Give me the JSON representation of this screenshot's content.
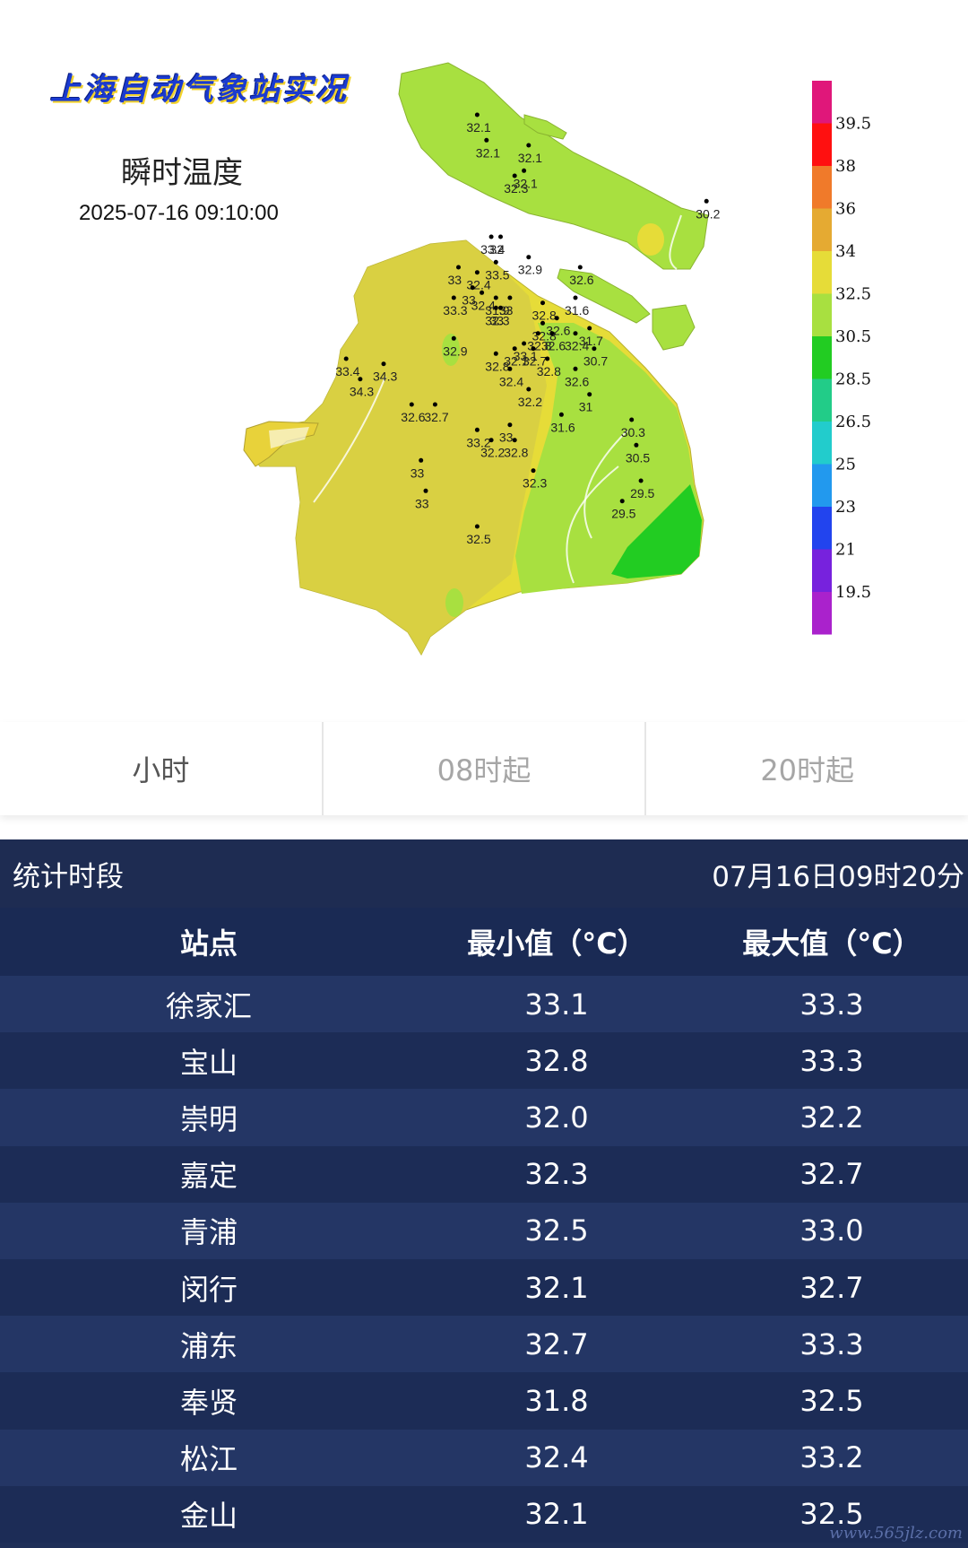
{
  "map": {
    "title": "上海自动气象站实况",
    "subtitle": "瞬时温度",
    "timestamp": "2025-07-16 09:10:00",
    "legend": [
      {
        "label": "39.5",
        "color": "#e0177a"
      },
      {
        "label": "38",
        "color": "#ff1010"
      },
      {
        "label": "36",
        "color": "#f07a2a"
      },
      {
        "label": "34",
        "color": "#e5aa32"
      },
      {
        "label": "32.5",
        "color": "#e6dc38"
      },
      {
        "label": "30.5",
        "color": "#a8e040"
      },
      {
        "label": "28.5",
        "color": "#22cc22"
      },
      {
        "label": "26.5",
        "color": "#22cc88"
      },
      {
        "label": "25",
        "color": "#22cccc"
      },
      {
        "label": "23",
        "color": "#2299ee"
      },
      {
        "label": "21",
        "color": "#2244ee"
      },
      {
        "label": "19.5",
        "color": "#7722dd"
      },
      {
        "label": "",
        "color": "#aa22cc"
      }
    ],
    "stations": [
      {
        "v": "32.1",
        "lon": 121.41,
        "lat": 31.76
      },
      {
        "v": "32.1",
        "lon": 121.43,
        "lat": 31.71
      },
      {
        "v": "32.1",
        "lon": 121.52,
        "lat": 31.7
      },
      {
        "v": "32.3",
        "lon": 121.49,
        "lat": 31.64
      },
      {
        "v": "32.1",
        "lon": 121.51,
        "lat": 31.65
      },
      {
        "v": "30.2",
        "lon": 121.9,
        "lat": 31.59
      },
      {
        "v": "33.4",
        "lon": 121.44,
        "lat": 31.52
      },
      {
        "v": "32",
        "lon": 121.46,
        "lat": 31.52
      },
      {
        "v": "33.5",
        "lon": 121.45,
        "lat": 31.47
      },
      {
        "v": "32.9",
        "lon": 121.52,
        "lat": 31.48
      },
      {
        "v": "33",
        "lon": 121.37,
        "lat": 31.46
      },
      {
        "v": "32.4",
        "lon": 121.41,
        "lat": 31.45
      },
      {
        "v": "32.6",
        "lon": 121.63,
        "lat": 31.46
      },
      {
        "v": "33",
        "lon": 121.4,
        "lat": 31.42
      },
      {
        "v": "33.3",
        "lon": 121.36,
        "lat": 31.4
      },
      {
        "v": "32.4",
        "lon": 121.42,
        "lat": 31.41
      },
      {
        "v": "31.9",
        "lon": 121.45,
        "lat": 31.4
      },
      {
        "v": "33",
        "lon": 121.48,
        "lat": 31.4
      },
      {
        "v": "32.8",
        "lon": 121.55,
        "lat": 31.39
      },
      {
        "v": "31.6",
        "lon": 121.62,
        "lat": 31.4
      },
      {
        "v": "32.3",
        "lon": 121.45,
        "lat": 31.38
      },
      {
        "v": "33",
        "lon": 121.46,
        "lat": 31.38
      },
      {
        "v": "32.6",
        "lon": 121.58,
        "lat": 31.36
      },
      {
        "v": "32.8",
        "lon": 121.55,
        "lat": 31.35
      },
      {
        "v": "32.6",
        "lon": 121.57,
        "lat": 31.33
      },
      {
        "v": "32.8",
        "lon": 121.54,
        "lat": 31.33
      },
      {
        "v": "32.4",
        "lon": 121.62,
        "lat": 31.33
      },
      {
        "v": "31.7",
        "lon": 121.65,
        "lat": 31.34
      },
      {
        "v": "32.9",
        "lon": 121.36,
        "lat": 31.32
      },
      {
        "v": "32.1",
        "lon": 121.49,
        "lat": 31.3
      },
      {
        "v": "33.1",
        "lon": 121.51,
        "lat": 31.31
      },
      {
        "v": "32.7",
        "lon": 121.53,
        "lat": 31.3
      },
      {
        "v": "30.7",
        "lon": 121.66,
        "lat": 31.3
      },
      {
        "v": "32.8",
        "lon": 121.45,
        "lat": 31.29
      },
      {
        "v": "32.8",
        "lon": 121.56,
        "lat": 31.28
      },
      {
        "v": "33.4",
        "lon": 121.13,
        "lat": 31.28
      },
      {
        "v": "34.3",
        "lon": 121.21,
        "lat": 31.27
      },
      {
        "v": "32.4",
        "lon": 121.48,
        "lat": 31.26
      },
      {
        "v": "32.6",
        "lon": 121.62,
        "lat": 31.26
      },
      {
        "v": "34.3",
        "lon": 121.16,
        "lat": 31.24
      },
      {
        "v": "32.2",
        "lon": 121.52,
        "lat": 31.22
      },
      {
        "v": "31",
        "lon": 121.65,
        "lat": 31.21
      },
      {
        "v": "32.6",
        "lon": 121.27,
        "lat": 31.19
      },
      {
        "v": "32.7",
        "lon": 121.32,
        "lat": 31.19
      },
      {
        "v": "31.6",
        "lon": 121.59,
        "lat": 31.17
      },
      {
        "v": "30.3",
        "lon": 121.74,
        "lat": 31.16
      },
      {
        "v": "33",
        "lon": 121.48,
        "lat": 31.15
      },
      {
        "v": "33.2",
        "lon": 121.41,
        "lat": 31.14
      },
      {
        "v": "32.2",
        "lon": 121.44,
        "lat": 31.12
      },
      {
        "v": "32.8",
        "lon": 121.49,
        "lat": 31.12
      },
      {
        "v": "30.5",
        "lon": 121.75,
        "lat": 31.11
      },
      {
        "v": "33",
        "lon": 121.29,
        "lat": 31.08
      },
      {
        "v": "32.3",
        "lon": 121.53,
        "lat": 31.06
      },
      {
        "v": "29.5",
        "lon": 121.76,
        "lat": 31.04
      },
      {
        "v": "33",
        "lon": 121.3,
        "lat": 31.02
      },
      {
        "v": "29.5",
        "lon": 121.72,
        "lat": 31.0
      },
      {
        "v": "32.5",
        "lon": 121.41,
        "lat": 30.95
      }
    ]
  },
  "tabs": [
    {
      "label": "小时",
      "active": true
    },
    {
      "label": "08时起",
      "active": false
    },
    {
      "label": "20时起",
      "active": false
    }
  ],
  "stats": {
    "period_label": "统计时段",
    "period_value": "07月16日09时20分",
    "columns": {
      "station": "站点",
      "min": "最小值（°C）",
      "max": "最大值（°C）"
    },
    "rows": [
      {
        "station": "徐家汇",
        "min": "33.1",
        "max": "33.3"
      },
      {
        "station": "宝山",
        "min": "32.8",
        "max": "33.3"
      },
      {
        "station": "崇明",
        "min": "32.0",
        "max": "32.2"
      },
      {
        "station": "嘉定",
        "min": "32.3",
        "max": "32.7"
      },
      {
        "station": "青浦",
        "min": "32.5",
        "max": "33.0"
      },
      {
        "station": "闵行",
        "min": "32.1",
        "max": "32.7"
      },
      {
        "station": "浦东",
        "min": "32.7",
        "max": "33.3"
      },
      {
        "station": "奉贤",
        "min": "31.8",
        "max": "32.5"
      },
      {
        "station": "松江",
        "min": "32.4",
        "max": "33.2"
      },
      {
        "station": "金山",
        "min": "32.1",
        "max": "32.5"
      }
    ]
  },
  "watermark": "www.565jlz.com"
}
